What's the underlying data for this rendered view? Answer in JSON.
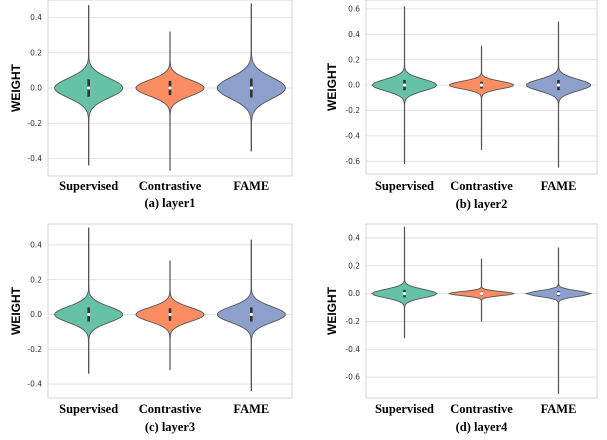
{
  "colors": {
    "Supervised": "#66c2a5",
    "Contrastive": "#fc8d62",
    "FAME": "#8da0cb",
    "grid": "#dddddd",
    "frame": "#cccccc",
    "whisker": "#444444"
  },
  "chart_data": [
    {
      "type": "violin",
      "caption": "(a) layer1",
      "ylabel": "WEIGHT",
      "categories": [
        "Supervised",
        "Contrastive",
        "FAME"
      ],
      "yticks": [
        0.4,
        0.2,
        0.0,
        -0.2,
        -0.4
      ],
      "ylim": [
        -0.5,
        0.5
      ],
      "series": [
        {
          "name": "Supervised",
          "min": -0.44,
          "max": 0.47,
          "spread": 0.055
        },
        {
          "name": "Contrastive",
          "min": -0.47,
          "max": 0.32,
          "spread": 0.045
        },
        {
          "name": "FAME",
          "min": -0.36,
          "max": 0.48,
          "spread": 0.06
        }
      ]
    },
    {
      "type": "violin",
      "caption": "(b) layer2",
      "ylabel": "WEIGHT",
      "categories": [
        "Supervised",
        "Contrastive",
        "FAME"
      ],
      "yticks": [
        0.6,
        0.4,
        0.2,
        0.0,
        -0.2,
        -0.4,
        -0.6
      ],
      "ylim": [
        -0.7,
        0.67
      ],
      "series": [
        {
          "name": "Supervised",
          "min": -0.62,
          "max": 0.62,
          "spread": 0.045
        },
        {
          "name": "Contrastive",
          "min": -0.51,
          "max": 0.31,
          "spread": 0.03
        },
        {
          "name": "FAME",
          "min": -0.65,
          "max": 0.5,
          "spread": 0.045
        }
      ]
    },
    {
      "type": "violin",
      "caption": "(c) layer3",
      "ylabel": "WEIGHT",
      "categories": [
        "Supervised",
        "Contrastive",
        "FAME"
      ],
      "yticks": [
        0.4,
        0.2,
        0.0,
        -0.2,
        -0.4
      ],
      "ylim": [
        -0.48,
        0.52
      ],
      "series": [
        {
          "name": "Supervised",
          "min": -0.34,
          "max": 0.5,
          "spread": 0.045
        },
        {
          "name": "Contrastive",
          "min": -0.32,
          "max": 0.31,
          "spread": 0.04
        },
        {
          "name": "FAME",
          "min": -0.44,
          "max": 0.43,
          "spread": 0.045
        }
      ]
    },
    {
      "type": "violin",
      "caption": "(d) layer4",
      "ylabel": "WEIGHT",
      "categories": [
        "Supervised",
        "Contrastive",
        "FAME"
      ],
      "yticks": [
        0.4,
        0.2,
        0.0,
        -0.2,
        -0.4,
        -0.6
      ],
      "ylim": [
        -0.75,
        0.5
      ],
      "series": [
        {
          "name": "Supervised",
          "min": -0.32,
          "max": 0.48,
          "spread": 0.03
        },
        {
          "name": "Contrastive",
          "min": -0.2,
          "max": 0.25,
          "spread": 0.015
        },
        {
          "name": "FAME",
          "min": -0.72,
          "max": 0.33,
          "spread": 0.02
        }
      ]
    }
  ]
}
